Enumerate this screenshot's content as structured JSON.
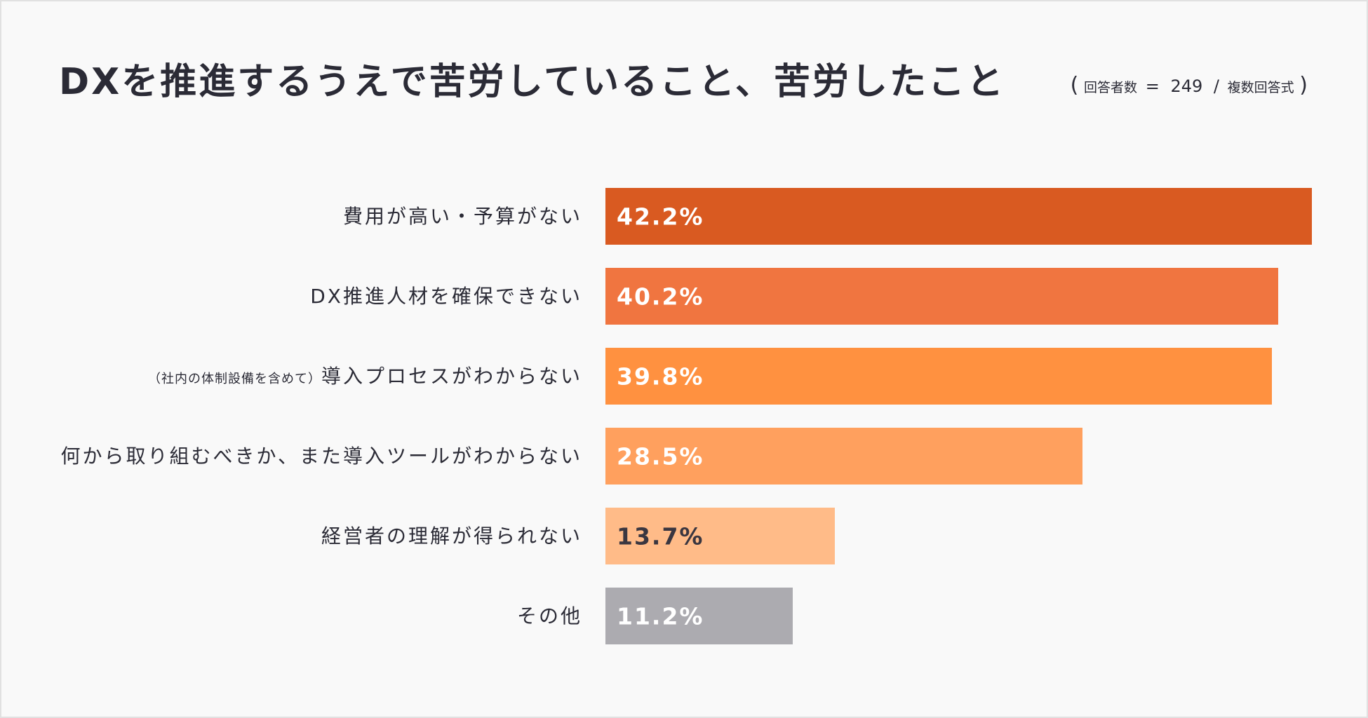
{
  "title": "DXを推進するうえで苦労していること、苦労したこと",
  "respondents": {
    "open": "(",
    "label": "回答者数",
    "equals": "=",
    "count": "249",
    "slash": "/",
    "method": "複数回答式",
    "close": ")"
  },
  "chart_data": {
    "type": "bar",
    "orientation": "horizontal",
    "categories": [
      "費用が高い・予算がない",
      "DX推進人材を確保できない",
      "（社内の体制設備を含めて）導入プロセスがわからない",
      "何から取り組むべきか、また導入ツールがわからない",
      "経営者の理解が得られない",
      "その他"
    ],
    "category_display": [
      {
        "small": "",
        "main": "費用が高い・予算がない"
      },
      {
        "small": "",
        "main": "DX推進人材を確保できない"
      },
      {
        "small": "（社内の体制設備を含めて）",
        "main": "導入プロセスがわからない"
      },
      {
        "small": "",
        "main": "何から取り組むべきか、また導入ツールがわからない"
      },
      {
        "small": "",
        "main": "経営者の理解が得られない"
      },
      {
        "small": "",
        "main": "その他"
      }
    ],
    "values": [
      42.2,
      40.2,
      39.8,
      28.5,
      13.7,
      11.2
    ],
    "value_labels": [
      "42.2%",
      "40.2%",
      "39.8%",
      "28.5%",
      "13.7%",
      "11.2%"
    ],
    "unit": "%",
    "xlim": [
      0,
      42.2
    ],
    "grid": false,
    "bar_colors": [
      "#d95a21",
      "#f07540",
      "#ff9140",
      "#ffa05e",
      "#ffbb88",
      "#acabb0"
    ],
    "label_colors": [
      "#ffffff",
      "#ffffff",
      "#ffffff",
      "#ffffff",
      "#3a3640",
      "#ffffff"
    ]
  }
}
